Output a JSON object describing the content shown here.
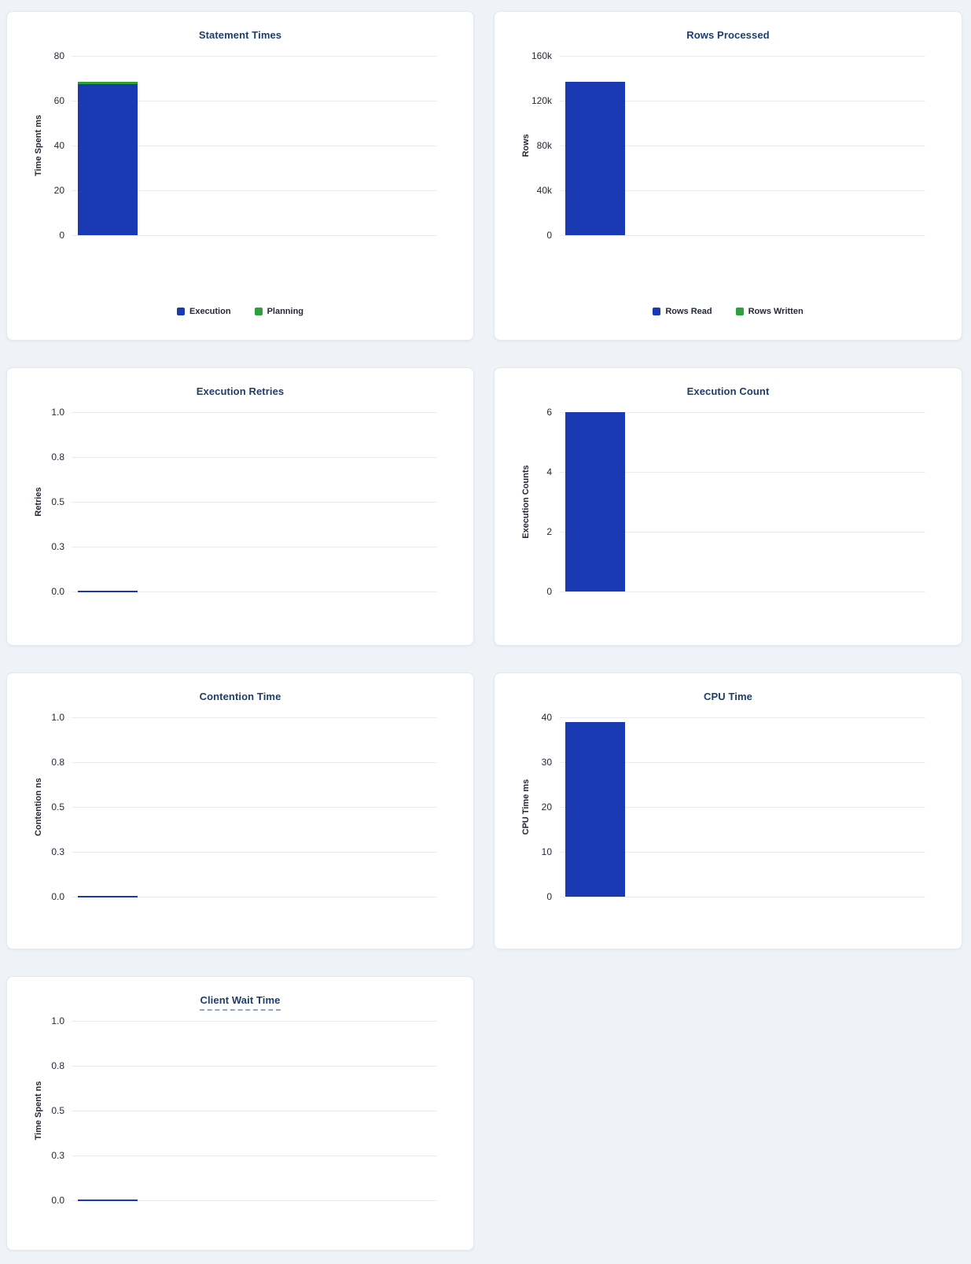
{
  "page": {
    "background_color": "#eff3f8",
    "card_background": "#ffffff",
    "card_border_color": "#e3e7ee"
  },
  "colors": {
    "bar_blue": "#1a3ab3",
    "bar_green": "#2da03c",
    "title_navy": "#1e3d6e",
    "tick_text": "#242a35",
    "gridline": "#e9ebf0"
  },
  "chart_data": [
    {
      "type": "bar",
      "title": "Statement Times",
      "title_underline": false,
      "ylabel": "Time Spent ms",
      "categories": [
        ""
      ],
      "stacked": true,
      "series": [
        {
          "name": "Execution",
          "values": [
            67.5
          ],
          "color": "#1a3ab3"
        },
        {
          "name": "Planning",
          "values": [
            0.9
          ],
          "color": "#2da03c"
        }
      ],
      "ylim": [
        0,
        80
      ],
      "ytick_labels": [
        "80",
        "60",
        "40",
        "20",
        "0"
      ],
      "grid": true,
      "legend": [
        "Execution",
        "Planning"
      ],
      "legend_position": "bottom"
    },
    {
      "type": "bar",
      "title": "Rows Processed",
      "title_underline": false,
      "ylabel": "Rows",
      "categories": [
        ""
      ],
      "stacked": true,
      "series": [
        {
          "name": "Rows Read",
          "values": [
            137000
          ],
          "color": "#1a3ab3"
        },
        {
          "name": "Rows Written",
          "values": [
            0
          ],
          "color": "#2da03c"
        }
      ],
      "ylim": [
        0,
        160000
      ],
      "ytick_labels": [
        "160k",
        "120k",
        "80k",
        "40k",
        "0"
      ],
      "grid": true,
      "legend": [
        "Rows Read",
        "Rows Written"
      ],
      "legend_position": "bottom"
    },
    {
      "type": "bar",
      "title": "Execution Retries",
      "title_underline": false,
      "ylabel": "Retries",
      "categories": [
        ""
      ],
      "stacked": false,
      "series": [
        {
          "name": "Retries",
          "values": [
            0
          ],
          "color": "#1a3ab3"
        }
      ],
      "ylim": [
        0,
        1.0
      ],
      "ytick_labels": [
        "1.0",
        "0.8",
        "0.5",
        "0.3",
        "0.0"
      ],
      "grid": true
    },
    {
      "type": "bar",
      "title": "Execution Count",
      "title_underline": false,
      "ylabel": "Execution Counts",
      "categories": [
        ""
      ],
      "stacked": false,
      "series": [
        {
          "name": "Execution Count",
          "values": [
            6
          ],
          "color": "#1a3ab3"
        }
      ],
      "ylim": [
        0,
        6
      ],
      "ytick_labels": [
        "6",
        "4",
        "2",
        "0"
      ],
      "grid": true
    },
    {
      "type": "bar",
      "title": "Contention Time",
      "title_underline": false,
      "ylabel": "Contention ns",
      "categories": [
        ""
      ],
      "stacked": false,
      "series": [
        {
          "name": "Contention",
          "values": [
            0
          ],
          "color": "#1a3ab3"
        }
      ],
      "ylim": [
        0,
        1.0
      ],
      "ytick_labels": [
        "1.0",
        "0.8",
        "0.5",
        "0.3",
        "0.0"
      ],
      "grid": true
    },
    {
      "type": "bar",
      "title": "CPU Time",
      "title_underline": false,
      "ylabel": "CPU Time ms",
      "categories": [
        ""
      ],
      "stacked": false,
      "series": [
        {
          "name": "CPU Time",
          "values": [
            39
          ],
          "color": "#1a3ab3"
        }
      ],
      "ylim": [
        0,
        40
      ],
      "ytick_labels": [
        "40",
        "30",
        "20",
        "10",
        "0"
      ],
      "grid": true
    },
    {
      "type": "bar",
      "title": "Client Wait Time",
      "title_underline": true,
      "ylabel": "Time Spent ns",
      "categories": [
        ""
      ],
      "stacked": false,
      "series": [
        {
          "name": "Client Wait",
          "values": [
            0
          ],
          "color": "#1a3ab3"
        }
      ],
      "ylim": [
        0,
        1.0
      ],
      "ytick_labels": [
        "1.0",
        "0.8",
        "0.5",
        "0.3",
        "0.0"
      ],
      "grid": true
    }
  ]
}
